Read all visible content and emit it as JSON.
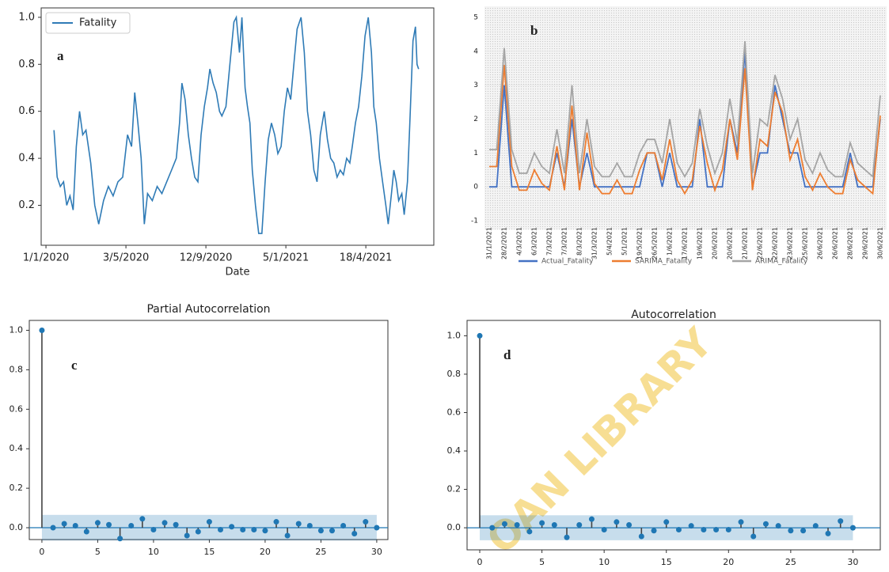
{
  "chart_data": [
    {
      "type": "line",
      "annotation": "a",
      "xlabel": "Date",
      "legend": "upper left",
      "frame": true,
      "xlim": [
        -6,
        485
      ],
      "ylim": [
        0.03,
        1.04
      ],
      "xticks": [
        {
          "value": 0,
          "label": "1/1/2020"
        },
        {
          "value": 100,
          "label": "3/5/2020"
        },
        {
          "value": 200,
          "label": "12/9/2020"
        },
        {
          "value": 300,
          "label": "5/1/2021"
        },
        {
          "value": 400,
          "label": "18/4/2021"
        }
      ],
      "yticks": [
        0.2,
        0.4,
        0.6,
        0.8,
        {
          "value": 1,
          "label": "1.0"
        }
      ],
      "x": [
        10,
        14,
        18,
        22,
        26,
        30,
        34,
        38,
        42,
        46,
        50,
        56,
        61,
        66,
        72,
        78,
        84,
        90,
        96,
        102,
        107,
        111,
        115,
        119,
        123,
        127,
        133,
        139,
        145,
        151,
        157,
        163,
        167,
        170,
        174,
        178,
        182,
        186,
        190,
        194,
        198,
        202,
        205,
        209,
        213,
        217,
        220,
        225,
        230,
        235,
        238,
        242,
        245,
        249,
        252,
        255,
        258,
        262,
        266,
        270,
        274,
        278,
        282,
        286,
        290,
        294,
        298,
        302,
        306,
        310,
        314,
        319,
        323,
        327,
        331,
        335,
        339,
        343,
        348,
        352,
        356,
        360,
        364,
        368,
        372,
        376,
        380,
        383,
        387,
        391,
        395,
        399,
        403,
        407,
        410,
        413,
        417,
        421,
        425,
        428,
        432,
        435,
        438,
        441,
        445,
        448,
        452,
        455,
        459,
        462,
        464,
        466
      ],
      "series": [
        {
          "name": "Fatality",
          "color": "#2f7bb6",
          "values": [
            0.52,
            0.32,
            0.28,
            0.3,
            0.2,
            0.24,
            0.18,
            0.45,
            0.6,
            0.5,
            0.52,
            0.38,
            0.2,
            0.12,
            0.22,
            0.28,
            0.24,
            0.3,
            0.32,
            0.5,
            0.45,
            0.68,
            0.55,
            0.4,
            0.12,
            0.25,
            0.22,
            0.28,
            0.25,
            0.3,
            0.35,
            0.4,
            0.55,
            0.72,
            0.65,
            0.5,
            0.4,
            0.32,
            0.3,
            0.5,
            0.62,
            0.7,
            0.78,
            0.72,
            0.68,
            0.6,
            0.58,
            0.62,
            0.8,
            0.98,
            1.0,
            0.85,
            1.0,
            0.7,
            0.62,
            0.55,
            0.35,
            0.2,
            0.08,
            0.08,
            0.3,
            0.48,
            0.55,
            0.5,
            0.42,
            0.45,
            0.6,
            0.7,
            0.65,
            0.8,
            0.95,
            1.0,
            0.85,
            0.6,
            0.5,
            0.35,
            0.3,
            0.5,
            0.6,
            0.48,
            0.4,
            0.38,
            0.32,
            0.35,
            0.33,
            0.4,
            0.38,
            0.45,
            0.55,
            0.62,
            0.75,
            0.92,
            1.0,
            0.85,
            0.62,
            0.55,
            0.4,
            0.3,
            0.2,
            0.12,
            0.25,
            0.35,
            0.3,
            0.22,
            0.25,
            0.16,
            0.3,
            0.55,
            0.9,
            0.96,
            0.8,
            0.78
          ]
        }
      ]
    },
    {
      "type": "line",
      "annotation": "b",
      "legend": "bottom",
      "frame": false,
      "ylim": [
        -1,
        5
      ],
      "yticks": [
        -1,
        0,
        1,
        2,
        3,
        4,
        5
      ],
      "grid": true,
      "categories": [
        "31/1/2021",
        null,
        "28/2/2021",
        null,
        "4/3/2021",
        null,
        "6/3/2021",
        null,
        "7/3/2021",
        null,
        "7/3/2021",
        null,
        "8/3/2021",
        null,
        "31/3/2021",
        null,
        "5/4/2021",
        null,
        "5/1/2021",
        null,
        "19/5/2021",
        null,
        "26/5/2021",
        null,
        "1/6/2021",
        null,
        "17/6/2021",
        null,
        "19/6/2021",
        null,
        "20/6/2021",
        null,
        "20/6/2021",
        null,
        "21/6/2021",
        null,
        "22/6/2021",
        null,
        "22/6/2021",
        null,
        "23/6/2021",
        null,
        "25/6/2021",
        null,
        "26/6/2021",
        null,
        "26/6/2021",
        null,
        "28/6/2021",
        null,
        "29/6/2021",
        null,
        "30/6/2021"
      ],
      "series": [
        {
          "name": "Actual_Fatality",
          "color": "#4472c4",
          "values": [
            0,
            0,
            3,
            0,
            0,
            0,
            0,
            0,
            0,
            1,
            0,
            2,
            0,
            1,
            0,
            0,
            0,
            0,
            0,
            0,
            0,
            1,
            1,
            0,
            1,
            0,
            0,
            0,
            2,
            0,
            0,
            0,
            2,
            1,
            4,
            0,
            1,
            1,
            3,
            2,
            1,
            1,
            0,
            0,
            0,
            0,
            0,
            0,
            1,
            0,
            0,
            0,
            2
          ]
        },
        {
          "name": "SARIMA_Fatality",
          "color": "#ed7d31",
          "values": [
            0.6,
            0.6,
            3.6,
            0.6,
            -0.1,
            -0.1,
            0.5,
            0.1,
            -0.1,
            1.2,
            -0.1,
            2.4,
            -0.1,
            1.6,
            0.1,
            -0.2,
            -0.2,
            0.2,
            -0.2,
            -0.2,
            0.5,
            1.0,
            1.0,
            0.2,
            1.4,
            0.2,
            -0.2,
            0.2,
            1.8,
            0.7,
            -0.1,
            0.5,
            2.0,
            0.8,
            3.5,
            -0.1,
            1.4,
            1.2,
            2.8,
            2.2,
            0.8,
            1.4,
            0.3,
            -0.1,
            0.4,
            0,
            -0.2,
            -0.2,
            0.8,
            0.2,
            0,
            -0.2,
            2.1
          ]
        },
        {
          "name": "ARIMA_Fatality",
          "color": "#a5a5a5",
          "values": [
            1.1,
            1.1,
            4.1,
            1.1,
            0.4,
            0.4,
            1.0,
            0.6,
            0.4,
            1.7,
            0.4,
            3.0,
            0.4,
            2.0,
            0.6,
            0.3,
            0.3,
            0.7,
            0.3,
            0.3,
            1.0,
            1.4,
            1.4,
            0.7,
            2.0,
            0.7,
            0.3,
            0.7,
            2.3,
            1.2,
            0.4,
            1.0,
            2.6,
            1.3,
            4.3,
            0.4,
            2.0,
            1.8,
            3.3,
            2.6,
            1.4,
            2.0,
            0.8,
            0.4,
            1.0,
            0.5,
            0.3,
            0.3,
            1.3,
            0.7,
            0.5,
            0.3,
            2.7
          ]
        }
      ]
    },
    {
      "type": "stem",
      "title": "Partial Autocorrelation",
      "annotation": "c",
      "frame": true,
      "color": "#1f77b4",
      "xlim": [
        -1.13,
        31
      ],
      "ylim": [
        -0.06,
        1.05
      ],
      "band": [
        -0.065,
        0.065
      ],
      "xticks": [
        0,
        5,
        10,
        15,
        20,
        25,
        30
      ],
      "yticks": [
        {
          "value": 0,
          "label": "0.0"
        },
        0.2,
        0.4,
        0.6,
        0.8,
        {
          "value": 1,
          "label": "1.0"
        }
      ],
      "x": [
        0,
        1,
        2,
        3,
        4,
        5,
        6,
        7,
        8,
        9,
        10,
        11,
        12,
        13,
        14,
        15,
        16,
        17,
        18,
        19,
        20,
        21,
        22,
        23,
        24,
        25,
        26,
        27,
        28,
        29,
        30
      ],
      "values": [
        1,
        0,
        0.02,
        0.01,
        -0.02,
        0.025,
        0.015,
        -0.055,
        0.01,
        0.045,
        -0.01,
        0.025,
        0.015,
        -0.04,
        -0.02,
        0.03,
        -0.01,
        0.005,
        -0.01,
        -0.01,
        -0.015,
        0.03,
        -0.04,
        0.02,
        0.01,
        -0.015,
        -0.015,
        0.01,
        -0.03,
        0.03,
        0
      ]
    },
    {
      "type": "stem",
      "title": "Autocorrelation",
      "annotation": "d",
      "frame": true,
      "color": "#1f77b4",
      "xlim": [
        -1.02,
        32.2
      ],
      "ylim": [
        -0.115,
        1.08
      ],
      "band": [
        -0.065,
        0.065
      ],
      "xticks": [
        0,
        5,
        10,
        15,
        20,
        25,
        30
      ],
      "yticks": [
        {
          "value": 0,
          "label": "0.0"
        },
        0.2,
        0.4,
        0.6,
        0.8,
        {
          "value": 1,
          "label": "1.0"
        }
      ],
      "x": [
        0,
        1,
        2,
        3,
        4,
        5,
        6,
        7,
        8,
        9,
        10,
        11,
        12,
        13,
        14,
        15,
        16,
        17,
        18,
        19,
        20,
        21,
        22,
        23,
        24,
        25,
        26,
        27,
        28,
        29,
        30
      ],
      "values": [
        1,
        0,
        0.02,
        0.015,
        -0.02,
        0.025,
        0.015,
        -0.05,
        0.015,
        0.045,
        -0.01,
        0.03,
        0.015,
        -0.045,
        -0.015,
        0.03,
        -0.01,
        0.01,
        -0.01,
        -0.01,
        -0.01,
        0.03,
        -0.045,
        0.02,
        0.01,
        -0.015,
        -0.015,
        0.01,
        -0.03,
        0.035,
        0
      ]
    }
  ],
  "watermark": "OAN LIBRARY"
}
